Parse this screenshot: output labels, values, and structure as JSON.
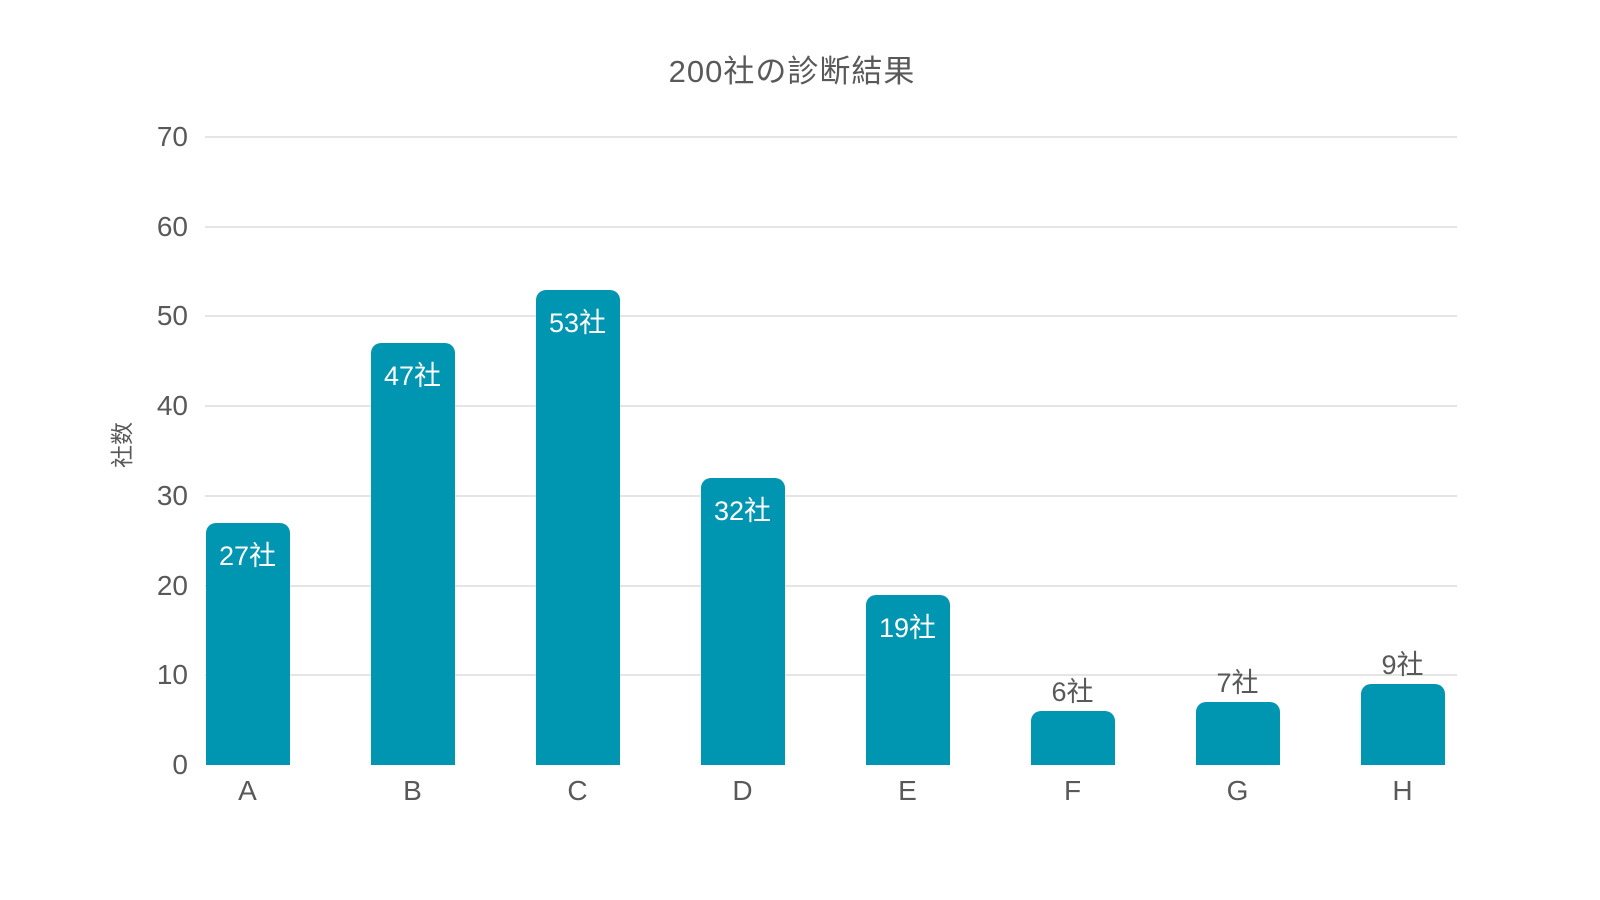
{
  "chart_data": {
    "type": "bar",
    "title": "200社の診断結果",
    "ylabel": "社数",
    "xlabel": "",
    "categories": [
      "A",
      "B",
      "C",
      "D",
      "E",
      "F",
      "G",
      "H"
    ],
    "values": [
      27,
      47,
      53,
      32,
      19,
      6,
      7,
      9
    ],
    "value_labels": [
      "27社",
      "47社",
      "53社",
      "32社",
      "19社",
      "6社",
      "7社",
      "9社"
    ],
    "unit_suffix": "社",
    "ylim": [
      0,
      70
    ],
    "yticks": [
      0,
      10,
      20,
      30,
      40,
      50,
      60,
      70
    ],
    "grid": true,
    "legend": false,
    "bar_color": "#0095b1",
    "inside_label_color": "#ffffff",
    "outside_label_color": "#595959",
    "axis_text_color": "#595959",
    "gridline_color": "#e5e5e5",
    "inside_label_min_value": 15
  }
}
